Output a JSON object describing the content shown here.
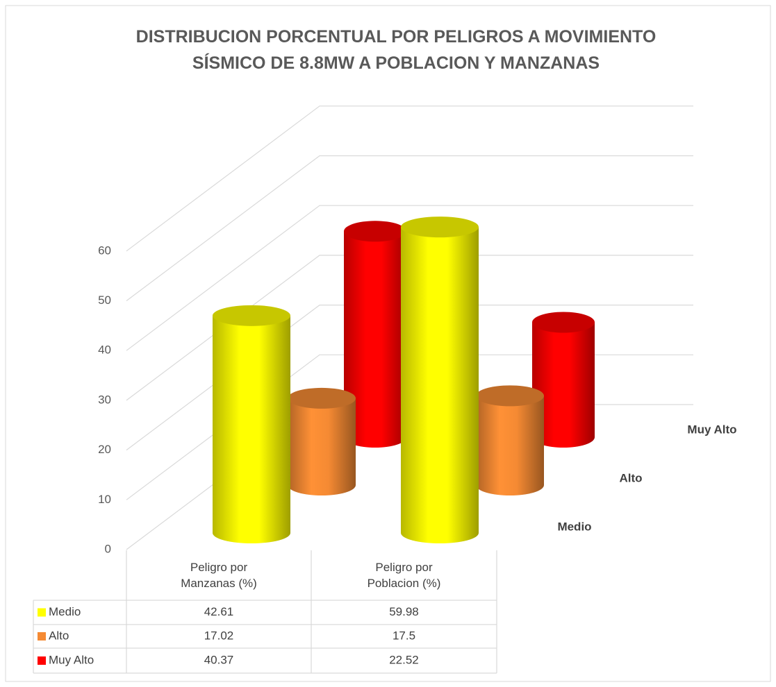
{
  "chart_data": {
    "type": "bar3d",
    "title": "DISTRIBUCION PORCENTUAL POR PELIGROS A MOVIMIENTO SÍSMICO DE 8.8MW A POBLACION Y MANZANAS",
    "categories": [
      "Peligro por Manzanas (%)",
      "Peligro por Poblacion (%)"
    ],
    "series": [
      {
        "name": "Medio",
        "color": "#ffff00",
        "values": [
          42.61,
          59.98
        ]
      },
      {
        "name": "Alto",
        "color": "#f58a33",
        "values": [
          17.02,
          17.5
        ]
      },
      {
        "name": "Muy Alto",
        "color": "#ff0000",
        "values": [
          40.37,
          22.52
        ]
      }
    ],
    "ylim": [
      0,
      60
    ],
    "yticks": [
      0,
      10,
      20,
      30,
      40,
      50,
      60
    ],
    "grid": true,
    "data_table": true
  }
}
